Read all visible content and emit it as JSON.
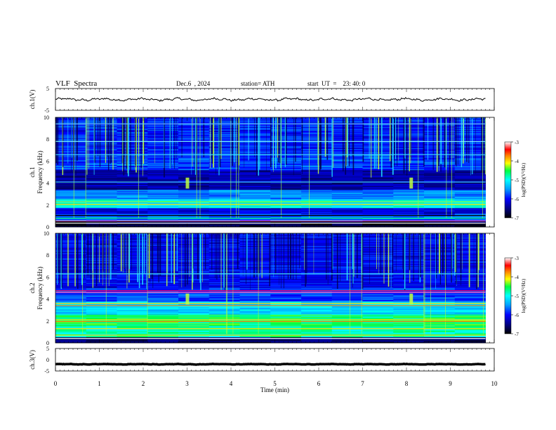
{
  "header": {
    "title": "VLF  Spectra",
    "date": "Dec.6  , 2024",
    "station": "station= ATH",
    "start": "start  UT  =    23: 40: 0"
  },
  "chart_data": [
    {
      "type": "line",
      "panel": "ch1-waveform",
      "ylabel": "ch.1(V)",
      "ylim": [
        -5,
        5
      ],
      "yticks": [
        "5",
        "-5"
      ],
      "xlim": [
        0,
        10
      ],
      "x_extent": [
        0,
        9.8
      ],
      "description_values": {
        "mean_level": 0.0,
        "amplitude": 0.8
      }
    },
    {
      "type": "heatmap",
      "panel": "ch1-spectrogram",
      "ylabel": "Frequency  (kHz)",
      "channel_label": "ch.1",
      "ylim": [
        0,
        10
      ],
      "yticks": [
        "0",
        "2",
        "4",
        "6",
        "8",
        "10"
      ],
      "xlim": [
        0,
        10
      ],
      "x_extent": [
        0,
        9.8
      ],
      "colorbar": {
        "label": "log(PSD)(V²/Hz)",
        "range": [
          -7,
          -3
        ],
        "ticks": [
          "-3",
          "-4",
          "-5",
          "-6",
          "-7"
        ]
      },
      "noted_features": [
        {
          "time_min": 3.0,
          "freq_khz": 4.0
        },
        {
          "time_min": 8.1,
          "freq_khz": 4.0
        }
      ]
    },
    {
      "type": "heatmap",
      "panel": "ch2-spectrogram",
      "ylabel": "Frequency  (kHz)",
      "channel_label": "ch.2",
      "ylim": [
        0,
        10
      ],
      "yticks": [
        "0",
        "2",
        "4",
        "6",
        "8",
        "10"
      ],
      "xlim": [
        0,
        10
      ],
      "x_extent": [
        0,
        9.8
      ],
      "colorbar": {
        "label": "log(PSD)(V²/Hz)",
        "range": [
          -7,
          -3
        ],
        "ticks": [
          "-3",
          "-4",
          "-5",
          "-6",
          "-7"
        ]
      },
      "noted_features": [
        {
          "time_min": 3.0,
          "freq_khz": 4.0
        },
        {
          "time_min": 8.1,
          "freq_khz": 4.0
        }
      ]
    },
    {
      "type": "line",
      "panel": "ch3-waveform",
      "ylabel": "ch.3(V)",
      "ylim": [
        -5,
        5
      ],
      "yticks": [
        "5",
        "0",
        "-5"
      ],
      "xlim": [
        0,
        10
      ],
      "x_extent": [
        0,
        9.8
      ],
      "description_values": {
        "mean_level": -2.0,
        "amplitude": 0.15
      }
    }
  ],
  "xaxis": {
    "label": "Time  (min)",
    "ticks": [
      "0",
      "1",
      "2",
      "3",
      "4",
      "5",
      "6",
      "7",
      "8",
      "9",
      "10"
    ]
  }
}
